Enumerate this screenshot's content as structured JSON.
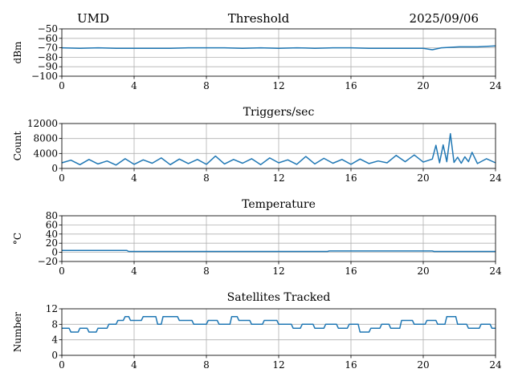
{
  "header": {
    "left": "UMD",
    "center": "Threshold",
    "right": "2025/09/06"
  },
  "chart_data": [
    {
      "type": "line",
      "title": "",
      "xlabel": "",
      "ylabel": "dBm",
      "xlim": [
        0,
        24
      ],
      "ylim": [
        -100,
        -50
      ],
      "xticks": [
        0,
        4,
        8,
        12,
        16,
        20,
        24
      ],
      "yticks": [
        -100,
        -90,
        -80,
        -70,
        -60,
        -50
      ],
      "ytick_labels": [
        "−100",
        "−90",
        "−80",
        "−70",
        "−60",
        "−50"
      ],
      "grid": true,
      "series": [
        {
          "color": "#1f77b4",
          "x": [
            0,
            1,
            2,
            3,
            4,
            5,
            6,
            7,
            8,
            9,
            10,
            11,
            12,
            13,
            14,
            15,
            16,
            17,
            18,
            19,
            20,
            20.5,
            21,
            22,
            23,
            24
          ],
          "y": [
            -70,
            -70.5,
            -70,
            -70.5,
            -70.5,
            -70.5,
            -70.5,
            -70,
            -70,
            -70,
            -70.5,
            -70,
            -70.5,
            -70,
            -70.5,
            -70,
            -70,
            -70.5,
            -70.5,
            -70.5,
            -70.5,
            -72,
            -70,
            -69,
            -69,
            -68
          ]
        }
      ]
    },
    {
      "type": "line",
      "title": "Triggers/sec",
      "xlabel": "",
      "ylabel": "Count",
      "xlim": [
        0,
        24
      ],
      "ylim": [
        0,
        12000
      ],
      "xticks": [
        0,
        4,
        8,
        12,
        16,
        20,
        24
      ],
      "yticks": [
        0,
        4000,
        8000,
        12000
      ],
      "ytick_labels": [
        "0",
        "4000",
        "8000",
        "12000"
      ],
      "grid": true,
      "series": [
        {
          "color": "#1f77b4",
          "x": [
            0,
            0.5,
            1,
            1.5,
            2,
            2.5,
            3,
            3.5,
            4,
            4.5,
            5,
            5.5,
            6,
            6.5,
            7,
            7.5,
            8,
            8.5,
            9,
            9.5,
            10,
            10.5,
            11,
            11.5,
            12,
            12.5,
            13,
            13.5,
            14,
            14.5,
            15,
            15.5,
            16,
            16.5,
            17,
            17.5,
            18,
            18.5,
            19,
            19.5,
            20,
            20.5,
            20.7,
            20.9,
            21.1,
            21.3,
            21.5,
            21.7,
            21.9,
            22.1,
            22.3,
            22.5,
            22.7,
            23,
            23.5,
            24
          ],
          "y": [
            1500,
            2200,
            1000,
            2400,
            1200,
            2000,
            900,
            2600,
            1100,
            2300,
            1400,
            2800,
            1000,
            2500,
            1300,
            2400,
            1100,
            3300,
            1200,
            2400,
            1400,
            2600,
            1000,
            2800,
            1500,
            2300,
            1100,
            3200,
            1200,
            2700,
            1400,
            2400,
            1100,
            2500,
            1300,
            2000,
            1500,
            3500,
            1800,
            3600,
            1700,
            2500,
            6200,
            1500,
            6300,
            1800,
            9300,
            1600,
            3000,
            1400,
            3100,
            1800,
            4300,
            1300,
            2600,
            1500
          ]
        }
      ]
    },
    {
      "type": "line",
      "title": "Temperature",
      "xlabel": "",
      "ylabel": "°C",
      "xlim": [
        0,
        24
      ],
      "ylim": [
        -20,
        80
      ],
      "xticks": [
        0,
        4,
        8,
        12,
        16,
        20,
        24
      ],
      "yticks": [
        -20,
        0,
        20,
        40,
        60,
        80
      ],
      "ytick_labels": [
        "−20",
        "0",
        "20",
        "40",
        "60",
        "80"
      ],
      "grid": true,
      "series": [
        {
          "color": "#1f77b4",
          "x": [
            0,
            3.6,
            3.7,
            14.7,
            14.8,
            20.5,
            20.6,
            24
          ],
          "y": [
            4,
            4,
            2,
            2,
            3,
            3,
            2,
            2
          ]
        }
      ]
    },
    {
      "type": "line",
      "title": "Satellites Tracked",
      "xlabel": "",
      "ylabel": "Number",
      "xlim": [
        0,
        24
      ],
      "ylim": [
        0,
        12
      ],
      "xticks": [
        0,
        4,
        8,
        12,
        16,
        20,
        24
      ],
      "yticks": [
        0,
        4,
        8,
        12
      ],
      "ytick_labels": [
        "0",
        "4",
        "8",
        "12"
      ],
      "grid": true,
      "series": [
        {
          "color": "#1f77b4",
          "x": [
            0,
            0.4,
            0.5,
            0.9,
            1.0,
            1.4,
            1.5,
            1.9,
            2.0,
            2.5,
            2.6,
            3.0,
            3.1,
            3.4,
            3.5,
            3.7,
            3.8,
            4.4,
            4.5,
            5.2,
            5.3,
            5.5,
            5.6,
            6.4,
            6.5,
            7.2,
            7.3,
            8.0,
            8.1,
            8.6,
            8.7,
            9.3,
            9.4,
            9.7,
            9.8,
            10.4,
            10.5,
            11.1,
            11.2,
            11.9,
            12.0,
            12.7,
            12.8,
            13.2,
            13.3,
            13.9,
            14.0,
            14.5,
            14.6,
            15.2,
            15.3,
            15.8,
            15.9,
            16.4,
            16.5,
            17.0,
            17.1,
            17.6,
            17.7,
            18.1,
            18.2,
            18.7,
            18.8,
            19.4,
            19.5,
            20.1,
            20.2,
            20.7,
            20.8,
            21.2,
            21.3,
            21.8,
            21.9,
            22.4,
            22.5,
            23.1,
            23.2,
            23.7,
            23.8,
            24
          ],
          "y": [
            7,
            7,
            6,
            6,
            7,
            7,
            6,
            6,
            7,
            7,
            8,
            8,
            9,
            9,
            10,
            10,
            9,
            9,
            10,
            10,
            8,
            8,
            10,
            10,
            9,
            9,
            8,
            8,
            9,
            9,
            8,
            8,
            10,
            10,
            9,
            9,
            8,
            8,
            9,
            9,
            8,
            8,
            7,
            7,
            8,
            8,
            7,
            7,
            8,
            8,
            7,
            7,
            8,
            8,
            6,
            6,
            7,
            7,
            8,
            8,
            7,
            7,
            9,
            9,
            8,
            8,
            9,
            9,
            8,
            8,
            10,
            10,
            8,
            8,
            7,
            7,
            8,
            8,
            7,
            7
          ]
        }
      ]
    }
  ]
}
